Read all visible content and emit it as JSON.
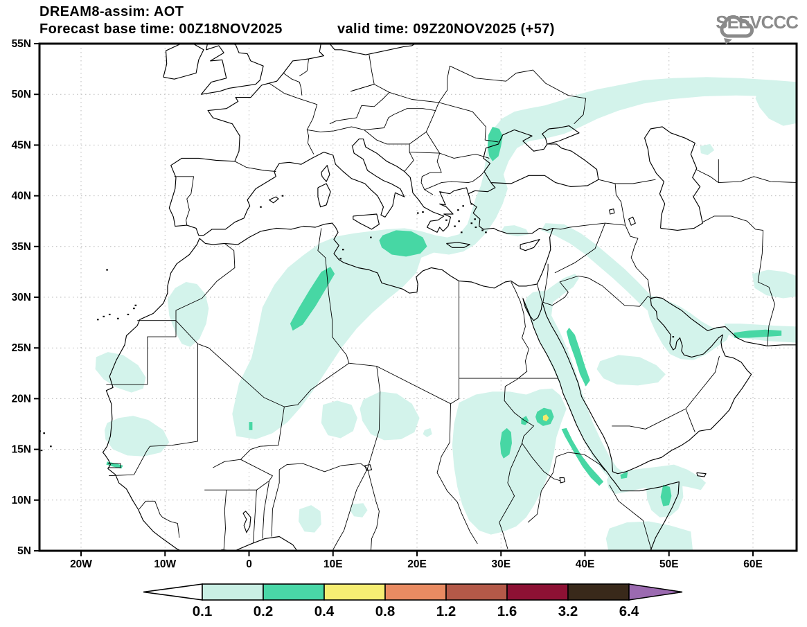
{
  "header": {
    "title": "DREAM8-assim: AOT",
    "base_time": "Forecast base time: 00Z18NOV2025",
    "valid_time": "valid time: 09Z20NOV2025 (+57)",
    "logo_text": "SEEVCCC"
  },
  "axes": {
    "lat_ticks": [
      {
        "label": "55N",
        "lat": 55
      },
      {
        "label": "50N",
        "lat": 50
      },
      {
        "label": "45N",
        "lat": 45
      },
      {
        "label": "40N",
        "lat": 40
      },
      {
        "label": "35N",
        "lat": 35
      },
      {
        "label": "30N",
        "lat": 30
      },
      {
        "label": "25N",
        "lat": 25
      },
      {
        "label": "20N",
        "lat": 20
      },
      {
        "label": "15N",
        "lat": 15
      },
      {
        "label": "10N",
        "lat": 10
      },
      {
        "label": "5N",
        "lat": 5
      }
    ],
    "lon_ticks": [
      {
        "label": "20W",
        "lon": -20
      },
      {
        "label": "10W",
        "lon": -10
      },
      {
        "label": "0",
        "lon": 0
      },
      {
        "label": "10E",
        "lon": 10
      },
      {
        "label": "20E",
        "lon": 20
      },
      {
        "label": "30E",
        "lon": 30
      },
      {
        "label": "40E",
        "lon": 40
      },
      {
        "label": "50E",
        "lon": 50
      },
      {
        "label": "60E",
        "lon": 60
      }
    ]
  },
  "colorbar": {
    "tick_labels": [
      "0.1",
      "0.2",
      "0.4",
      "0.8",
      "1.2",
      "1.6",
      "3.2",
      "6.4"
    ],
    "segment_colors": [
      "#c9efe4",
      "#49d7a7",
      "#f6ee73",
      "#e98b62",
      "#b45948",
      "#8d1134",
      "#39291a"
    ],
    "underflow_color": "#ffffff",
    "overflow_color": "#9b6ab0"
  },
  "map": {
    "fill_level_01": "#d3f3eb",
    "fill_level_02": "#47d7a4",
    "fill_level_04": "#f3ea6b",
    "coast_color": "#000000",
    "grid_color": "#b8b8b8",
    "frame_color": "#000000"
  }
}
